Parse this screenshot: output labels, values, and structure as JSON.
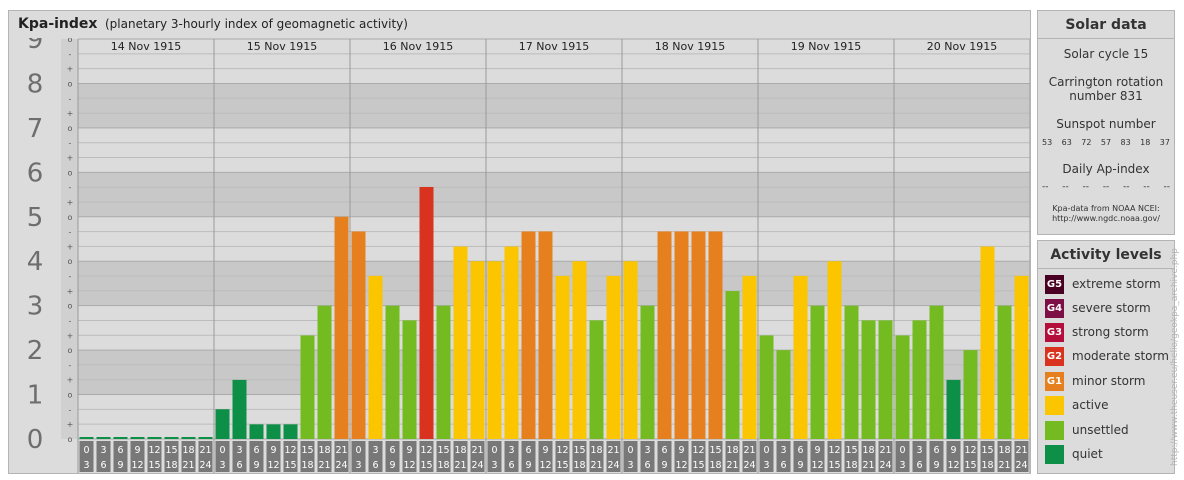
{
  "header": {
    "title": "Kpa-index",
    "subtitle": "(planetary 3-hourly index of geomagnetic activity)"
  },
  "chart_data": {
    "type": "bar",
    "title": "Kpa-index",
    "subtitle": "(planetary 3-hourly index of geomagnetic activity)",
    "ylim": [
      0,
      9
    ],
    "y_major_labels": [
      "0",
      "1",
      "2",
      "3",
      "4",
      "5",
      "6",
      "7",
      "8",
      "9"
    ],
    "y_minor_marks": [
      "+",
      "-",
      "o"
    ],
    "days": [
      "14 Nov 1915",
      "15 Nov 1915",
      "16 Nov 1915",
      "17 Nov 1915",
      "18 Nov 1915",
      "19 Nov 1915",
      "20 Nov 1915"
    ],
    "interval_start": [
      "0",
      "3",
      "6",
      "9",
      "12",
      "15",
      "18",
      "21"
    ],
    "interval_end": [
      "3",
      "6",
      "9",
      "12",
      "15",
      "18",
      "21",
      "24"
    ],
    "values": [
      0.0,
      0.0,
      0.0,
      0.0,
      0.0,
      0.0,
      0.0,
      0.0,
      0.67,
      1.33,
      0.33,
      0.33,
      0.33,
      2.33,
      3.0,
      5.0,
      4.67,
      3.67,
      3.0,
      2.67,
      5.67,
      3.0,
      4.33,
      4.0,
      4.0,
      4.33,
      4.67,
      4.67,
      3.67,
      4.0,
      2.67,
      3.67,
      4.0,
      3.0,
      4.67,
      4.67,
      4.67,
      4.67,
      3.33,
      3.67,
      2.33,
      2.0,
      3.67,
      3.0,
      4.0,
      3.0,
      2.67,
      2.67,
      2.33,
      2.67,
      3.0,
      1.33,
      2.0,
      4.33,
      3.0,
      3.67
    ],
    "grid": true,
    "colors": {
      "quiet": "#0e8f47",
      "unsettled": "#74bb21",
      "active": "#fbc500",
      "G1": "#e6801e",
      "G2": "#d9321f",
      "G3": "#b40f3c",
      "G4": "#7e0f46",
      "G5": "#4a0022"
    }
  },
  "solar_data": {
    "title": "Solar data",
    "solar_cycle": "Solar cycle 15",
    "carrington_line1": "Carrington rotation",
    "carrington_line2": "number 831",
    "sunspot_title": "Sunspot number",
    "sunspot_numbers": [
      "53",
      "63",
      "72",
      "57",
      "83",
      "18",
      "37"
    ],
    "ap_title": "Daily Ap-index",
    "ap_values": [
      "--",
      "--",
      "--",
      "--",
      "--",
      "--",
      "--"
    ],
    "source_line1": "Kpa-data from NOAA NCEI:",
    "source_line2": "http://www.ngdc.noaa.gov/"
  },
  "activity_levels": {
    "title": "Activity levels",
    "items": [
      {
        "code": "G5",
        "label": "extreme storm",
        "color": "#4a0022"
      },
      {
        "code": "G4",
        "label": "severe storm",
        "color": "#7e0f46"
      },
      {
        "code": "G3",
        "label": "strong storm",
        "color": "#b40f3c"
      },
      {
        "code": "G2",
        "label": "moderate storm",
        "color": "#d9321f"
      },
      {
        "code": "G1",
        "label": "minor storm",
        "color": "#e6801e"
      },
      {
        "code": "",
        "label": "active",
        "color": "#fbc500"
      },
      {
        "code": "",
        "label": "unsettled",
        "color": "#74bb21"
      },
      {
        "code": "",
        "label": "quiet",
        "color": "#0e8f47"
      }
    ]
  },
  "watermark": "http://www.theuser.eu/helio/geokpa_archive.php"
}
